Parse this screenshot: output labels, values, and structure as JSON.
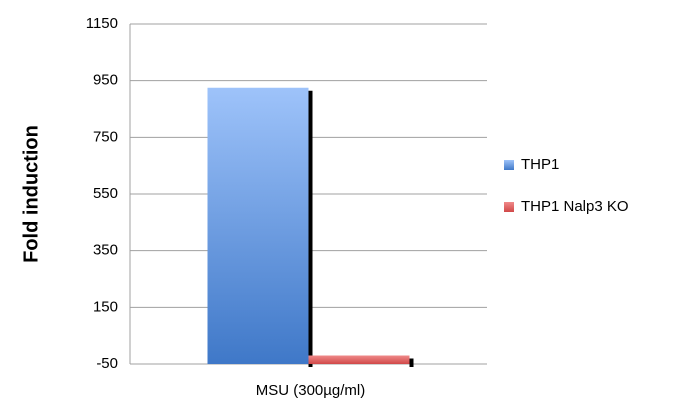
{
  "chart_data": {
    "type": "bar",
    "y_label": "Fold induction",
    "categories": [
      "MSU (300µg/ml)"
    ],
    "series": [
      {
        "name": "THP1",
        "color": "#4a7fd0",
        "values": [
          925
        ]
      },
      {
        "name": "THP1 Nalp3 KO",
        "color": "#e06060",
        "values": [
          -20
        ]
      }
    ],
    "ylim": [
      -50,
      1150
    ],
    "yticks": [
      -50,
      150,
      350,
      550,
      750,
      950,
      1150
    ],
    "grid": true,
    "legend": "right"
  }
}
